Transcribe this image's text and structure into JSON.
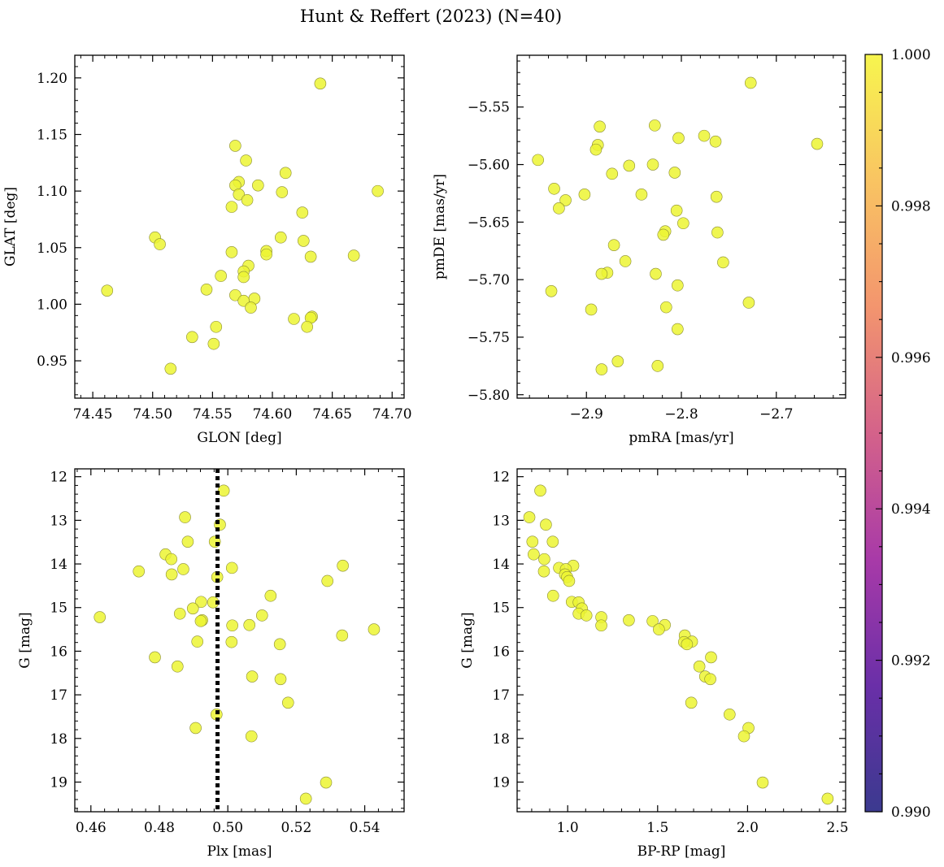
{
  "figure": {
    "title": "Hunt & Reffert (2023) (N=40)"
  },
  "colorbar": {
    "vmin": 0.99,
    "vmax": 1.0,
    "ticks": [
      0.99,
      0.992,
      0.994,
      0.996,
      0.998,
      1.0
    ],
    "tick_labels": [
      "0.990",
      "0.992",
      "0.994",
      "0.996",
      "0.998",
      "1.000"
    ],
    "colormap": "plasma",
    "colormap_stops": [
      "#3b3a8f",
      "#6a2fa8",
      "#a83aa8",
      "#d4628a",
      "#f3956e",
      "#f9c462",
      "#f7f54e"
    ]
  },
  "point_style": {
    "fill": "#ecf533",
    "stroke": "#8a8c33",
    "membership_value": 1.0
  },
  "chart_data": [
    {
      "type": "scatter",
      "id": "glon-glat",
      "title": "",
      "xlabel": "GLON [deg]",
      "ylabel": "GLAT [deg]",
      "xlim": [
        74.435,
        74.71
      ],
      "ylim": [
        0.917,
        1.22
      ],
      "invert_y": false,
      "xticks": [
        74.45,
        74.5,
        74.55,
        74.6,
        74.65,
        74.7
      ],
      "xtick_labels": [
        "74.45",
        "74.50",
        "74.55",
        "74.60",
        "74.65",
        "74.70"
      ],
      "yticks": [
        0.95,
        1.0,
        1.05,
        1.1,
        1.15,
        1.2
      ],
      "ytick_labels": [
        "0.95",
        "1.00",
        "1.05",
        "1.10",
        "1.15",
        "1.20"
      ],
      "points": [
        [
          74.64,
          1.195
        ],
        [
          74.569,
          1.14
        ],
        [
          74.578,
          1.127
        ],
        [
          74.611,
          1.116
        ],
        [
          74.572,
          1.108
        ],
        [
          74.569,
          1.105
        ],
        [
          74.588,
          1.105
        ],
        [
          74.688,
          1.1
        ],
        [
          74.608,
          1.099
        ],
        [
          74.572,
          1.097
        ],
        [
          74.579,
          1.092
        ],
        [
          74.566,
          1.086
        ],
        [
          74.625,
          1.081
        ],
        [
          74.502,
          1.059
        ],
        [
          74.607,
          1.059
        ],
        [
          74.506,
          1.053
        ],
        [
          74.626,
          1.056
        ],
        [
          74.595,
          1.047
        ],
        [
          74.566,
          1.046
        ],
        [
          74.595,
          1.044
        ],
        [
          74.668,
          1.043
        ],
        [
          74.632,
          1.042
        ],
        [
          74.58,
          1.034
        ],
        [
          74.576,
          1.029
        ],
        [
          74.557,
          1.025
        ],
        [
          74.576,
          1.024
        ],
        [
          74.545,
          1.013
        ],
        [
          74.462,
          1.012
        ],
        [
          74.569,
          1.008
        ],
        [
          74.585,
          1.005
        ],
        [
          74.576,
          1.003
        ],
        [
          74.582,
          0.997
        ],
        [
          74.633,
          0.989
        ],
        [
          74.632,
          0.988
        ],
        [
          74.618,
          0.987
        ],
        [
          74.553,
          0.98
        ],
        [
          74.629,
          0.98
        ],
        [
          74.533,
          0.971
        ],
        [
          74.551,
          0.965
        ],
        [
          74.515,
          0.943
        ]
      ]
    },
    {
      "type": "scatter",
      "id": "pmra-pmde",
      "title": "",
      "xlabel": "pmRA [mas/yr]",
      "ylabel": "pmDE [mas/yr]",
      "xlim": [
        -2.973,
        -2.627
      ],
      "ylim": [
        -5.803,
        -5.505
      ],
      "invert_y": false,
      "xticks": [
        -2.9,
        -2.8,
        -2.7
      ],
      "xtick_labels": [
        "−2.9",
        "−2.8",
        "−2.7"
      ],
      "yticks": [
        -5.8,
        -5.75,
        -5.7,
        -5.65,
        -5.6,
        -5.55
      ],
      "ytick_labels": [
        "−5.80",
        "−5.75",
        "−5.70",
        "−5.65",
        "−5.60",
        "−5.55"
      ],
      "points": [
        [
          -2.727,
          -5.529
        ],
        [
          -2.828,
          -5.566
        ],
        [
          -2.886,
          -5.567
        ],
        [
          -2.776,
          -5.575
        ],
        [
          -2.803,
          -5.577
        ],
        [
          -2.764,
          -5.58
        ],
        [
          -2.657,
          -5.582
        ],
        [
          -2.888,
          -5.583
        ],
        [
          -2.89,
          -5.587
        ],
        [
          -2.951,
          -5.596
        ],
        [
          -2.83,
          -5.6
        ],
        [
          -2.855,
          -5.601
        ],
        [
          -2.807,
          -5.607
        ],
        [
          -2.873,
          -5.608
        ],
        [
          -2.934,
          -5.621
        ],
        [
          -2.842,
          -5.626
        ],
        [
          -2.902,
          -5.626
        ],
        [
          -2.763,
          -5.628
        ],
        [
          -2.922,
          -5.631
        ],
        [
          -2.929,
          -5.638
        ],
        [
          -2.805,
          -5.64
        ],
        [
          -2.798,
          -5.651
        ],
        [
          -2.817,
          -5.658
        ],
        [
          -2.762,
          -5.659
        ],
        [
          -2.819,
          -5.661
        ],
        [
          -2.756,
          -5.685
        ],
        [
          -2.859,
          -5.684
        ],
        [
          -2.871,
          -5.67
        ],
        [
          -2.878,
          -5.694
        ],
        [
          -2.884,
          -5.695
        ],
        [
          -2.827,
          -5.695
        ],
        [
          -2.804,
          -5.705
        ],
        [
          -2.937,
          -5.71
        ],
        [
          -2.729,
          -5.72
        ],
        [
          -2.816,
          -5.724
        ],
        [
          -2.895,
          -5.726
        ],
        [
          -2.804,
          -5.743
        ],
        [
          -2.867,
          -5.771
        ],
        [
          -2.825,
          -5.775
        ],
        [
          -2.884,
          -5.778
        ]
      ]
    },
    {
      "type": "scatter",
      "id": "plx-g",
      "title": "",
      "xlabel": "Plx [mas]",
      "ylabel": "G [mag]",
      "xlim": [
        0.4553,
        0.5515
      ],
      "ylim": [
        19.68,
        11.82
      ],
      "invert_y": true,
      "vline": {
        "x": 0.497,
        "style": "dotted"
      },
      "xticks": [
        0.46,
        0.48,
        0.5,
        0.52,
        0.54
      ],
      "xtick_labels": [
        "0.46",
        "0.48",
        "0.50",
        "0.52",
        "0.54"
      ],
      "yticks": [
        12,
        13,
        14,
        15,
        16,
        17,
        18,
        19
      ],
      "ytick_labels": [
        "12",
        "13",
        "14",
        "15",
        "16",
        "17",
        "18",
        "19"
      ],
      "points": [
        [
          0.4988,
          12.32
        ],
        [
          0.4875,
          12.93
        ],
        [
          0.4977,
          13.1
        ],
        [
          0.4883,
          13.49
        ],
        [
          0.4962,
          13.49
        ],
        [
          0.4818,
          13.78
        ],
        [
          0.4835,
          13.89
        ],
        [
          0.5336,
          14.04
        ],
        [
          0.5012,
          14.09
        ],
        [
          0.487,
          14.12
        ],
        [
          0.474,
          14.17
        ],
        [
          0.4836,
          14.24
        ],
        [
          0.4969,
          14.3
        ],
        [
          0.5291,
          14.39
        ],
        [
          0.5125,
          14.73
        ],
        [
          0.4922,
          14.87
        ],
        [
          0.4957,
          14.88
        ],
        [
          0.4898,
          15.02
        ],
        [
          0.486,
          15.14
        ],
        [
          0.51,
          15.18
        ],
        [
          0.4626,
          15.22
        ],
        [
          0.4925,
          15.29
        ],
        [
          0.4921,
          15.31
        ],
        [
          0.5063,
          15.4
        ],
        [
          0.5013,
          15.41
        ],
        [
          0.5427,
          15.5
        ],
        [
          0.5334,
          15.64
        ],
        [
          0.4911,
          15.78
        ],
        [
          0.5011,
          15.79
        ],
        [
          0.5152,
          15.84
        ],
        [
          0.4787,
          16.14
        ],
        [
          0.4853,
          16.35
        ],
        [
          0.5071,
          16.58
        ],
        [
          0.5154,
          16.64
        ],
        [
          0.5176,
          17.18
        ],
        [
          0.4967,
          17.45
        ],
        [
          0.4906,
          17.76
        ],
        [
          0.5069,
          17.95
        ],
        [
          0.5287,
          19.01
        ],
        [
          0.5228,
          19.38
        ]
      ]
    },
    {
      "type": "scatter",
      "id": "bprp-g",
      "title": "",
      "xlabel": "BP-RP [mag]",
      "ylabel": "G [mag]",
      "xlim": [
        0.719,
        2.545
      ],
      "ylim": [
        19.68,
        11.82
      ],
      "invert_y": true,
      "xticks": [
        1.0,
        1.5,
        2.0,
        2.5
      ],
      "xtick_labels": [
        "1.0",
        "1.5",
        "2.0",
        "2.5"
      ],
      "yticks": [
        12,
        13,
        14,
        15,
        16,
        17,
        18,
        19
      ],
      "ytick_labels": [
        "12",
        "13",
        "14",
        "15",
        "16",
        "17",
        "18",
        "19"
      ],
      "points": [
        [
          0.848,
          12.32
        ],
        [
          0.787,
          12.93
        ],
        [
          0.879,
          13.1
        ],
        [
          0.804,
          13.49
        ],
        [
          0.917,
          13.49
        ],
        [
          0.811,
          13.78
        ],
        [
          0.87,
          13.89
        ],
        [
          1.031,
          14.04
        ],
        [
          0.952,
          14.09
        ],
        [
          0.99,
          14.12
        ],
        [
          0.868,
          14.17
        ],
        [
          0.985,
          14.24
        ],
        [
          0.997,
          14.3
        ],
        [
          1.008,
          14.39
        ],
        [
          0.919,
          14.73
        ],
        [
          1.023,
          14.87
        ],
        [
          1.061,
          14.88
        ],
        [
          1.079,
          15.02
        ],
        [
          1.061,
          15.14
        ],
        [
          1.104,
          15.18
        ],
        [
          1.187,
          15.22
        ],
        [
          1.34,
          15.29
        ],
        [
          1.472,
          15.31
        ],
        [
          1.54,
          15.4
        ],
        [
          1.187,
          15.41
        ],
        [
          1.507,
          15.5
        ],
        [
          1.651,
          15.64
        ],
        [
          1.691,
          15.78
        ],
        [
          1.647,
          15.79
        ],
        [
          1.797,
          16.14
        ],
        [
          1.732,
          16.35
        ],
        [
          1.764,
          16.58
        ],
        [
          1.793,
          16.64
        ],
        [
          1.687,
          17.18
        ],
        [
          1.9,
          17.45
        ],
        [
          2.005,
          17.76
        ],
        [
          1.98,
          17.95
        ],
        [
          2.084,
          19.01
        ],
        [
          2.445,
          19.38
        ],
        [
          1.663,
          15.84
        ]
      ]
    }
  ]
}
